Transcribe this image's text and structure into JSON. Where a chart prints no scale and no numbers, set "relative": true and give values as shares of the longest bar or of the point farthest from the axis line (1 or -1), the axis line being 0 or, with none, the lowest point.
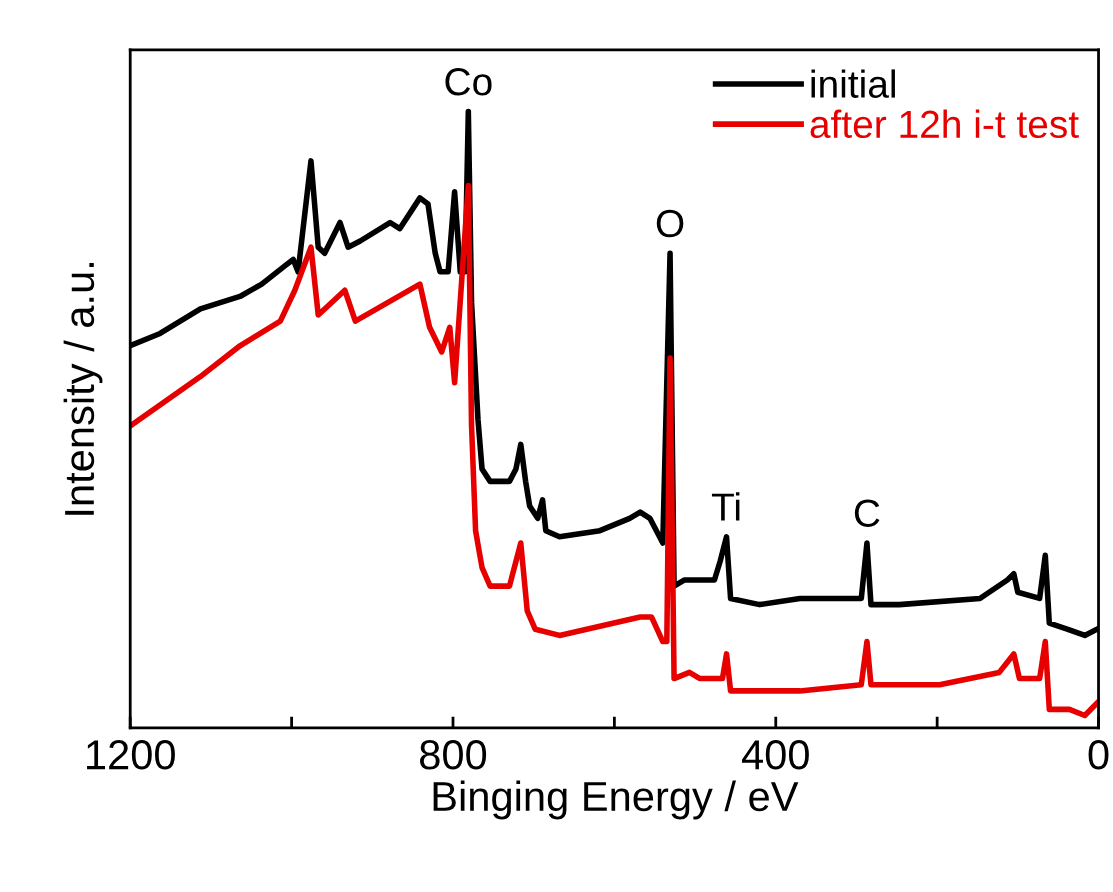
{
  "chart_data": {
    "type": "line",
    "relative": true,
    "xlabel": "Binging Energy / eV",
    "ylabel": "Intensity / a.u.",
    "xlim": [
      1200,
      0
    ],
    "xticks": [
      1200,
      {
        "value": 1000,
        "label": null
      },
      800,
      {
        "value": 600,
        "label": null
      },
      400,
      {
        "value": 200,
        "label": null
      },
      0
    ],
    "tick_labels": "x",
    "grid": false,
    "legend": "top right",
    "marker": "none",
    "line_style": "solid",
    "series": [
      {
        "name": "initial",
        "color": "#000000",
        "x": [
          1200,
          1163,
          1113,
          1064,
          1037,
          1008,
          998,
          992,
          976,
          967,
          959,
          940,
          930,
          915,
          878,
          866,
          841,
          831,
          822,
          816,
          806,
          798,
          791,
          785,
          781,
          777,
          769,
          764,
          754,
          730,
          722,
          716,
          710,
          705,
          695,
          689,
          685,
          668,
          618,
          581,
          568,
          556,
          540,
          531,
          526,
          513,
          476,
          469,
          461,
          456,
          420,
          370,
          321,
          294,
          287,
          282,
          247,
          147,
          113,
          105,
          100,
          73,
          66,
          61,
          38,
          17,
          2
        ],
        "values": [
          0.62,
          0.64,
          0.68,
          0.7,
          0.72,
          0.75,
          0.76,
          0.74,
          0.92,
          0.78,
          0.77,
          0.82,
          0.78,
          0.79,
          0.82,
          0.81,
          0.86,
          0.85,
          0.77,
          0.74,
          0.74,
          0.87,
          0.74,
          0.74,
          1.0,
          0.69,
          0.5,
          0.42,
          0.4,
          0.4,
          0.42,
          0.46,
          0.4,
          0.36,
          0.34,
          0.37,
          0.32,
          0.31,
          0.32,
          0.34,
          0.35,
          0.34,
          0.3,
          0.77,
          0.23,
          0.24,
          0.24,
          0.27,
          0.31,
          0.21,
          0.2,
          0.21,
          0.21,
          0.21,
          0.3,
          0.2,
          0.2,
          0.21,
          0.24,
          0.25,
          0.22,
          0.21,
          0.28,
          0.17,
          0.16,
          0.15,
          0.16
        ]
      },
      {
        "name": "after 12h i-t test",
        "color": "#e60000",
        "x": [
          1200,
          1113,
          1064,
          1014,
          996,
          976,
          967,
          934,
          921,
          841,
          829,
          814,
          804,
          798,
          789,
          781,
          777,
          772,
          764,
          754,
          730,
          716,
          708,
          698,
          668,
          568,
          554,
          540,
          535,
          531,
          526,
          507,
          494,
          466,
          461,
          456,
          370,
          294,
          287,
          282,
          197,
          123,
          105,
          98,
          73,
          66,
          61,
          36,
          17,
          2
        ],
        "values": [
          0.49,
          0.57,
          0.62,
          0.66,
          0.71,
          0.78,
          0.67,
          0.71,
          0.66,
          0.72,
          0.65,
          0.61,
          0.65,
          0.56,
          0.73,
          0.88,
          0.49,
          0.32,
          0.26,
          0.23,
          0.23,
          0.3,
          0.19,
          0.16,
          0.15,
          0.18,
          0.18,
          0.14,
          0.14,
          0.6,
          0.08,
          0.09,
          0.08,
          0.08,
          0.12,
          0.06,
          0.06,
          0.07,
          0.14,
          0.07,
          0.07,
          0.09,
          0.12,
          0.08,
          0.08,
          0.14,
          0.03,
          0.03,
          0.02,
          0.04
        ]
      }
    ],
    "annotations": [
      {
        "text": "Co",
        "x": 781,
        "y": 1.0
      },
      {
        "text": "O",
        "x": 531,
        "y": 0.77
      },
      {
        "text": "Ti",
        "x": 461,
        "y": 0.31
      },
      {
        "text": "C",
        "x": 287,
        "y": 0.3
      }
    ]
  }
}
